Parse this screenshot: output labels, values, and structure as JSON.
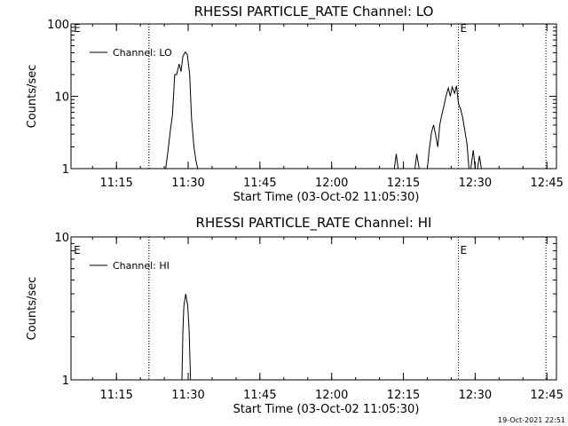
{
  "footer": {
    "timestamp": "19-Oct-2021 22:51"
  },
  "chart_data": [
    {
      "type": "line",
      "title": "RHESSI PARTICLE_RATE Channel: LO",
      "xlabel": "Start Time (03-Oct-02 11:05:30)",
      "ylabel": "Counts/sec",
      "y_scale": "log",
      "ylim": [
        1,
        100
      ],
      "y_ticks": [
        {
          "v": 1,
          "label": "1"
        },
        {
          "v": 10,
          "label": "10"
        },
        {
          "v": 100,
          "label": "100"
        }
      ],
      "x_range_minutes_after_start": [
        0,
        101.5
      ],
      "x_ticks": [
        {
          "m": 9.5,
          "label": "11:15"
        },
        {
          "m": 24.5,
          "label": "11:30"
        },
        {
          "m": 39.5,
          "label": "11:45"
        },
        {
          "m": 54.5,
          "label": "12:00"
        },
        {
          "m": 69.5,
          "label": "12:15"
        },
        {
          "m": 84.5,
          "label": "12:30"
        },
        {
          "m": 99.5,
          "label": "12:45"
        }
      ],
      "event_lines_minutes": [
        16.3,
        16.3,
        81.0,
        99.3
      ],
      "event_labels": [
        {
          "m": 0.2,
          "text": "E"
        },
        {
          "m": 81.0,
          "text": "E"
        }
      ],
      "legend": {
        "label": "Channel: LO",
        "position": "top-left"
      },
      "series": [
        {
          "name": "Channel: LO",
          "segments": [
            [
              [
                19.8,
                1
              ],
              [
                20.3,
                1.8
              ],
              [
                20.8,
                3.5
              ],
              [
                21.2,
                5.5
              ],
              [
                21.7,
                20
              ],
              [
                22.1,
                20
              ],
              [
                22.6,
                28
              ],
              [
                23.0,
                22
              ],
              [
                23.4,
                36
              ],
              [
                23.9,
                41
              ],
              [
                24.3,
                38
              ],
              [
                24.8,
                20
              ],
              [
                25.2,
                5
              ],
              [
                25.7,
                2
              ],
              [
                26.1,
                1.3
              ],
              [
                26.5,
                1
              ]
            ],
            [
              [
                67.6,
                1
              ],
              [
                68.0,
                1.6
              ],
              [
                68.4,
                1
              ]
            ],
            [
              [
                71.9,
                1
              ],
              [
                72.3,
                1.6
              ],
              [
                72.8,
                1
              ]
            ],
            [
              [
                74.5,
                1
              ],
              [
                74.9,
                1.8
              ],
              [
                75.4,
                3.2
              ],
              [
                75.8,
                4
              ],
              [
                76.2,
                3
              ],
              [
                76.7,
                2
              ],
              [
                77.1,
                4
              ],
              [
                77.5,
                5.5
              ],
              [
                78.0,
                7.5
              ],
              [
                78.4,
                10
              ],
              [
                78.9,
                13
              ],
              [
                79.3,
                10
              ],
              [
                79.7,
                13.5
              ],
              [
                80.2,
                11
              ],
              [
                80.6,
                14
              ],
              [
                81.0,
                8
              ],
              [
                81.5,
                6.5
              ],
              [
                81.9,
                5
              ],
              [
                82.3,
                3.5
              ],
              [
                82.8,
                2.2
              ],
              [
                83.2,
                1
              ]
            ],
            [
              [
                83.6,
                1
              ],
              [
                84.1,
                1.8
              ],
              [
                84.5,
                1
              ]
            ],
            [
              [
                85.0,
                1
              ],
              [
                85.4,
                1.5
              ],
              [
                85.8,
                1
              ]
            ]
          ]
        }
      ]
    },
    {
      "type": "line",
      "title": "RHESSI PARTICLE_RATE Channel: HI",
      "xlabel": "Start Time (03-Oct-02 11:05:30)",
      "ylabel": "Counts/sec",
      "y_scale": "log",
      "ylim": [
        1,
        10
      ],
      "y_ticks": [
        {
          "v": 1,
          "label": "1"
        },
        {
          "v": 10,
          "label": "10"
        }
      ],
      "x_range_minutes_after_start": [
        0,
        101.5
      ],
      "x_ticks": [
        {
          "m": 9.5,
          "label": "11:15"
        },
        {
          "m": 24.5,
          "label": "11:30"
        },
        {
          "m": 39.5,
          "label": "11:45"
        },
        {
          "m": 54.5,
          "label": "12:00"
        },
        {
          "m": 69.5,
          "label": "12:15"
        },
        {
          "m": 84.5,
          "label": "12:30"
        },
        {
          "m": 99.5,
          "label": "12:45"
        }
      ],
      "event_lines_minutes": [
        16.3,
        16.3,
        81.0,
        99.3
      ],
      "event_labels": [
        {
          "m": 0.2,
          "text": "E"
        },
        {
          "m": 81.0,
          "text": "E"
        }
      ],
      "legend": {
        "label": "Channel: HI",
        "position": "top-left"
      },
      "series": [
        {
          "name": "Channel: HI",
          "segments": [
            [
              [
                23.2,
                1
              ],
              [
                23.4,
                2.2
              ],
              [
                23.6,
                3.3
              ],
              [
                24.0,
                4
              ],
              [
                24.4,
                3.3
              ],
              [
                24.7,
                2.2
              ],
              [
                25.0,
                1
              ]
            ]
          ]
        }
      ]
    }
  ]
}
